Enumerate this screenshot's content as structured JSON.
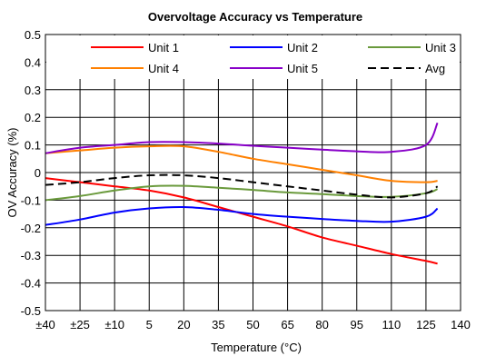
{
  "chart_data": {
    "type": "line",
    "title": "Overvoltage Accuracy vs Temperature",
    "xlabel": "Temperature (°C)",
    "ylabel": "OV Accuracy (%)",
    "x_tick_labels": [
      "±40",
      "±25",
      "±10",
      "5",
      "20",
      "35",
      "50",
      "65",
      "80",
      "95",
      "110",
      "125",
      "140"
    ],
    "x_ticks": [
      -40,
      -25,
      -10,
      5,
      20,
      35,
      50,
      65,
      80,
      95,
      110,
      125,
      140
    ],
    "xlim": [
      -40,
      140
    ],
    "y_tick_labels": [
      "0.5",
      "0.4",
      "0.3",
      "0.2",
      "0.1",
      "0",
      "-0.1",
      "-0.2",
      "-0.3",
      "-0.4",
      "-0.5"
    ],
    "y_ticks": [
      0.5,
      0.4,
      0.3,
      0.2,
      0.1,
      0,
      -0.1,
      -0.2,
      -0.3,
      -0.4,
      -0.5
    ],
    "ylim": [
      -0.5,
      0.5
    ],
    "grid": true,
    "legend_position": "top",
    "series": [
      {
        "name": "Unit 1",
        "color": "#ff0000",
        "dash": false,
        "x": [
          -40,
          -25,
          -10,
          5,
          20,
          35,
          50,
          65,
          80,
          95,
          110,
          125,
          130
        ],
        "y": [
          -0.02,
          -0.035,
          -0.05,
          -0.065,
          -0.09,
          -0.125,
          -0.16,
          -0.195,
          -0.235,
          -0.265,
          -0.295,
          -0.32,
          -0.33
        ]
      },
      {
        "name": "Unit 2",
        "color": "#0000ff",
        "dash": false,
        "x": [
          -40,
          -25,
          -10,
          5,
          20,
          35,
          50,
          65,
          80,
          95,
          110,
          125,
          130
        ],
        "y": [
          -0.19,
          -0.17,
          -0.145,
          -0.13,
          -0.125,
          -0.135,
          -0.15,
          -0.16,
          -0.168,
          -0.175,
          -0.178,
          -0.16,
          -0.13
        ]
      },
      {
        "name": "Unit 3",
        "color": "#6a9a3c",
        "dash": false,
        "x": [
          -40,
          -25,
          -10,
          5,
          20,
          35,
          50,
          65,
          80,
          95,
          110,
          125,
          130
        ],
        "y": [
          -0.1,
          -0.085,
          -0.065,
          -0.05,
          -0.048,
          -0.055,
          -0.063,
          -0.072,
          -0.078,
          -0.085,
          -0.088,
          -0.075,
          -0.06
        ]
      },
      {
        "name": "Unit 4",
        "color": "#ff8000",
        "dash": false,
        "x": [
          -40,
          -25,
          -10,
          5,
          20,
          35,
          50,
          65,
          80,
          95,
          110,
          125,
          130
        ],
        "y": [
          0.07,
          0.08,
          0.09,
          0.095,
          0.095,
          0.075,
          0.05,
          0.03,
          0.01,
          -0.01,
          -0.03,
          -0.035,
          -0.03
        ]
      },
      {
        "name": "Unit 5",
        "color": "#8800c8",
        "dash": false,
        "x": [
          -40,
          -25,
          -10,
          5,
          20,
          35,
          50,
          65,
          80,
          95,
          110,
          125,
          130
        ],
        "y": [
          0.07,
          0.09,
          0.1,
          0.11,
          0.11,
          0.105,
          0.097,
          0.09,
          0.083,
          0.077,
          0.075,
          0.1,
          0.18
        ]
      },
      {
        "name": "Avg",
        "color": "#000000",
        "dash": true,
        "x": [
          -40,
          -25,
          -10,
          5,
          20,
          35,
          50,
          65,
          80,
          95,
          110,
          125,
          130
        ],
        "y": [
          -0.045,
          -0.035,
          -0.02,
          -0.01,
          -0.01,
          -0.02,
          -0.035,
          -0.05,
          -0.065,
          -0.08,
          -0.09,
          -0.075,
          -0.05
        ]
      }
    ]
  }
}
